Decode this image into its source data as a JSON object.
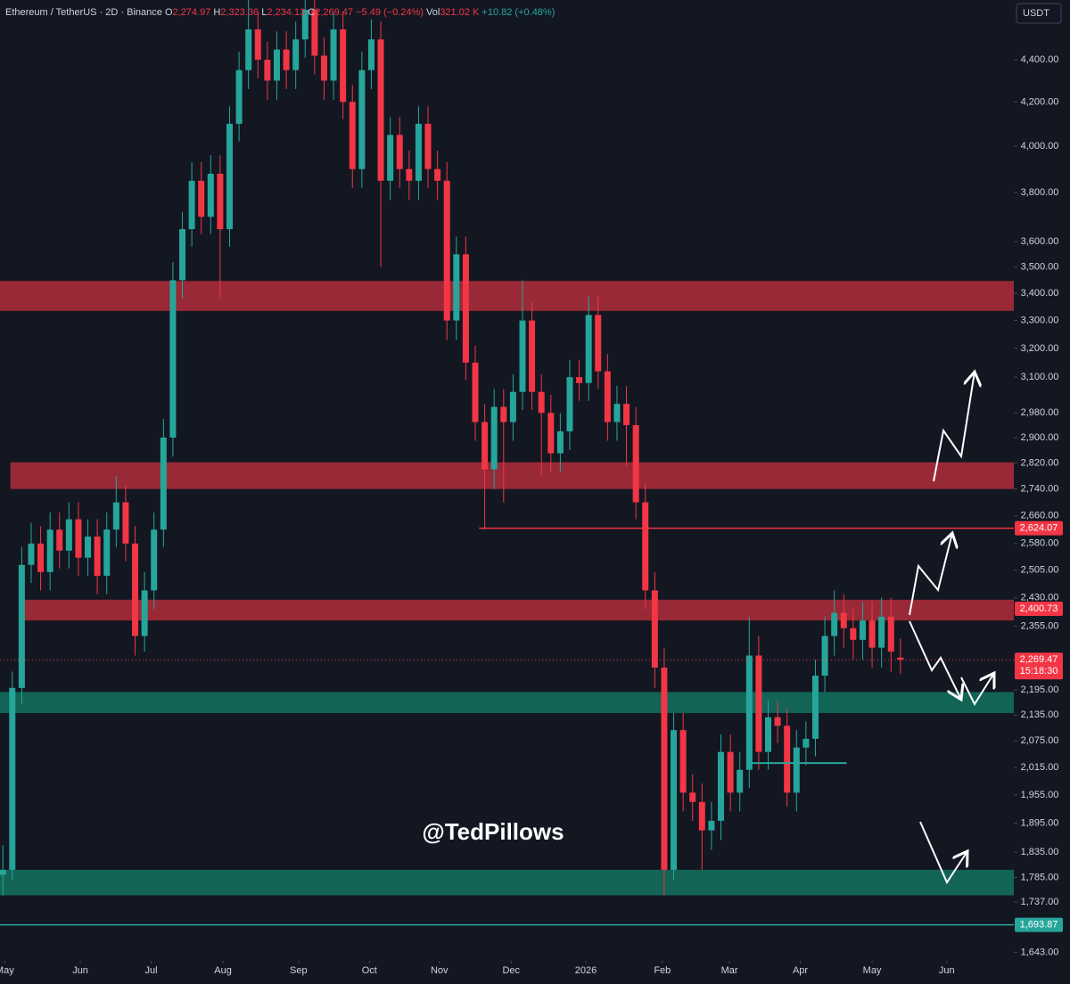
{
  "header": {
    "symbol": "Ethereum / TetherUS · 2D · Binance",
    "o_key": "O",
    "o": "2,274.97",
    "h_key": "H",
    "h": "2,323.36",
    "l_key": "L",
    "l": "2,234.13",
    "c_key": "C",
    "c": "2,269.47",
    "change": "−5.49 (−0.24%)",
    "vol_key": "Vol",
    "vol": "321.02 K",
    "vol_change": "+10.82 (+0.48%)",
    "currency": "USDT",
    "watermark": "@TedPillows"
  },
  "chart_data": {
    "type": "candlestick",
    "log_scale": true,
    "up_color": "#26a69a",
    "down_color": "#f23645",
    "xlim": [
      -0.3,
      107
    ],
    "ylim": [
      1628,
      4700
    ],
    "yticks": [
      {
        "value": 4400,
        "label": "4,400.00"
      },
      {
        "value": 4200,
        "label": "4,200.00"
      },
      {
        "value": 4000,
        "label": "4,000.00"
      },
      {
        "value": 3800,
        "label": "3,800.00"
      },
      {
        "value": 3600,
        "label": "3,600.00"
      },
      {
        "value": 3500,
        "label": "3,500.00"
      },
      {
        "value": 3400,
        "label": "3,400.00"
      },
      {
        "value": 3300,
        "label": "3,300.00"
      },
      {
        "value": 3200,
        "label": "3,200.00"
      },
      {
        "value": 3100,
        "label": "3,100.00"
      },
      {
        "value": 2980,
        "label": "2,980.00"
      },
      {
        "value": 2900,
        "label": "2,900.00"
      },
      {
        "value": 2820,
        "label": "2,820.00"
      },
      {
        "value": 2740,
        "label": "2,740.00"
      },
      {
        "value": 2660,
        "label": "2,660.00"
      },
      {
        "value": 2580,
        "label": "2,580.00"
      },
      {
        "value": 2505,
        "label": "2,505.00"
      },
      {
        "value": 2430,
        "label": "2,430.00"
      },
      {
        "value": 2355,
        "label": "2,355.00"
      },
      {
        "value": 2195,
        "label": "2,195.00"
      },
      {
        "value": 2135,
        "label": "2,135.00"
      },
      {
        "value": 2075,
        "label": "2,075.00"
      },
      {
        "value": 2015,
        "label": "2,015.00"
      },
      {
        "value": 1955,
        "label": "1,955.00"
      },
      {
        "value": 1895,
        "label": "1,895.00"
      },
      {
        "value": 1835,
        "label": "1,835.00"
      },
      {
        "value": 1785,
        "label": "1,785.00"
      },
      {
        "value": 1737,
        "label": "1,737.00"
      },
      {
        "value": 1643,
        "label": "1,643.00"
      }
    ],
    "xticks": [
      {
        "value": 0.2,
        "label": "May"
      },
      {
        "value": 8.2,
        "label": "Jun"
      },
      {
        "value": 15.7,
        "label": "Jul"
      },
      {
        "value": 23.3,
        "label": "Aug"
      },
      {
        "value": 31.3,
        "label": "Sep"
      },
      {
        "value": 38.8,
        "label": "Oct"
      },
      {
        "value": 46.2,
        "label": "Nov"
      },
      {
        "value": 53.8,
        "label": "Dec"
      },
      {
        "value": 61.7,
        "label": "2026"
      },
      {
        "value": 69.8,
        "label": "Feb"
      },
      {
        "value": 76.9,
        "label": "Mar"
      },
      {
        "value": 84.4,
        "label": "Apr"
      },
      {
        "value": 92,
        "label": "May"
      },
      {
        "value": 99.9,
        "label": "Jun"
      }
    ],
    "ohlc": [
      [
        1790,
        1850,
        1750,
        1800
      ],
      [
        1800,
        2240,
        1780,
        2200
      ],
      [
        2200,
        2570,
        2160,
        2520
      ],
      [
        2520,
        2640,
        2470,
        2580
      ],
      [
        2580,
        2630,
        2450,
        2500
      ],
      [
        2500,
        2670,
        2450,
        2620
      ],
      [
        2620,
        2670,
        2510,
        2560
      ],
      [
        2560,
        2700,
        2510,
        2650
      ],
      [
        2650,
        2700,
        2490,
        2540
      ],
      [
        2540,
        2650,
        2490,
        2600
      ],
      [
        2600,
        2650,
        2440,
        2490
      ],
      [
        2490,
        2670,
        2440,
        2620
      ],
      [
        2620,
        2780,
        2570,
        2700
      ],
      [
        2700,
        2750,
        2530,
        2580
      ],
      [
        2580,
        2630,
        2280,
        2330
      ],
      [
        2330,
        2500,
        2290,
        2450
      ],
      [
        2450,
        2670,
        2400,
        2620
      ],
      [
        2620,
        2960,
        2570,
        2900
      ],
      [
        2900,
        3520,
        2840,
        3450
      ],
      [
        3450,
        3720,
        3380,
        3650
      ],
      [
        3650,
        3930,
        3580,
        3850
      ],
      [
        3850,
        3930,
        3630,
        3700
      ],
      [
        3700,
        3960,
        3630,
        3880
      ],
      [
        3880,
        3960,
        3380,
        3650
      ],
      [
        3650,
        4180,
        3580,
        4100
      ],
      [
        4100,
        4440,
        4020,
        4350
      ],
      [
        4350,
        4700,
        4260,
        4550
      ],
      [
        4550,
        4640,
        4310,
        4400
      ],
      [
        4400,
        4490,
        4210,
        4300
      ],
      [
        4300,
        4540,
        4210,
        4450
      ],
      [
        4450,
        4540,
        4260,
        4350
      ],
      [
        4350,
        4590,
        4260,
        4500
      ],
      [
        4500,
        4700,
        4410,
        4650
      ],
      [
        4650,
        4700,
        4330,
        4420
      ],
      [
        4420,
        4510,
        4210,
        4300
      ],
      [
        4300,
        4640,
        4210,
        4550
      ],
      [
        4550,
        4640,
        4120,
        4200
      ],
      [
        4200,
        4280,
        3820,
        3900
      ],
      [
        3900,
        4440,
        3820,
        4350
      ],
      [
        4350,
        4600,
        4260,
        4500
      ],
      [
        4500,
        4590,
        3500,
        3850
      ],
      [
        3850,
        4130,
        3770,
        4050
      ],
      [
        4050,
        4130,
        3820,
        3900
      ],
      [
        3900,
        3980,
        3770,
        3850
      ],
      [
        3850,
        4180,
        3770,
        4100
      ],
      [
        4100,
        4180,
        3820,
        3900
      ],
      [
        3900,
        3980,
        3770,
        3850
      ],
      [
        3850,
        3930,
        3230,
        3300
      ],
      [
        3300,
        3620,
        3230,
        3550
      ],
      [
        3550,
        3620,
        3090,
        3150
      ],
      [
        3150,
        3210,
        2890,
        2950
      ],
      [
        2950,
        3010,
        2620,
        2800
      ],
      [
        2800,
        3060,
        2740,
        3000
      ],
      [
        3000,
        3060,
        2700,
        2950
      ],
      [
        2950,
        3110,
        2890,
        3050
      ],
      [
        3050,
        3450,
        2990,
        3300
      ],
      [
        3300,
        3370,
        2990,
        3050
      ],
      [
        3050,
        3110,
        2780,
        2980
      ],
      [
        2980,
        3040,
        2790,
        2850
      ],
      [
        2850,
        2980,
        2790,
        2920
      ],
      [
        2920,
        3160,
        2860,
        3100
      ],
      [
        3100,
        3160,
        3020,
        3080
      ],
      [
        3080,
        3390,
        3020,
        3320
      ],
      [
        3320,
        3390,
        3060,
        3120
      ],
      [
        3120,
        3180,
        2890,
        2950
      ],
      [
        2950,
        3070,
        2890,
        3010
      ],
      [
        3010,
        3070,
        2810,
        2940
      ],
      [
        2940,
        3000,
        2650,
        2700
      ],
      [
        2700,
        2760,
        2400,
        2450
      ],
      [
        2450,
        2500,
        2200,
        2250
      ],
      [
        2250,
        2300,
        1750,
        1800
      ],
      [
        1800,
        2140,
        1780,
        2100
      ],
      [
        2100,
        2140,
        1920,
        1960
      ],
      [
        1960,
        2000,
        1900,
        1940
      ],
      [
        1940,
        1980,
        1800,
        1880
      ],
      [
        1880,
        1940,
        1840,
        1900
      ],
      [
        1900,
        2090,
        1860,
        2050
      ],
      [
        2050,
        2090,
        1920,
        1960
      ],
      [
        1960,
        2050,
        1920,
        2010
      ],
      [
        2010,
        2380,
        1970,
        2280
      ],
      [
        2280,
        2330,
        2010,
        2050
      ],
      [
        2050,
        2170,
        2010,
        2130
      ],
      [
        2130,
        2170,
        2070,
        2110
      ],
      [
        2110,
        2150,
        1930,
        1960
      ],
      [
        1960,
        2100,
        1920,
        2060
      ],
      [
        2060,
        2120,
        2020,
        2080
      ],
      [
        2080,
        2270,
        2040,
        2230
      ],
      [
        2230,
        2380,
        2190,
        2330
      ],
      [
        2330,
        2450,
        2280,
        2390
      ],
      [
        2390,
        2440,
        2300,
        2350
      ],
      [
        2350,
        2400,
        2270,
        2320
      ],
      [
        2320,
        2420,
        2270,
        2370
      ],
      [
        2370,
        2420,
        2250,
        2300
      ],
      [
        2300,
        2430,
        2250,
        2380
      ],
      [
        2380,
        2430,
        2240,
        2290
      ],
      [
        2274.97,
        2323.36,
        2234.13,
        2269.47
      ]
    ],
    "zones": [
      {
        "from": 3335,
        "to": 3447,
        "x0": -0.3,
        "color": "#b22d3a"
      },
      {
        "from": 2740,
        "to": 2822,
        "x0": 0.8,
        "color": "#b22d3a"
      },
      {
        "from": 2370,
        "to": 2425,
        "x0": 2.3,
        "color": "#b22d3a"
      },
      {
        "from": 2140,
        "to": 2190,
        "x0": -0.3,
        "color": "#12725f"
      },
      {
        "from": 1750,
        "to": 1800,
        "x0": -0.3,
        "color": "#12725f"
      }
    ],
    "levels": [
      {
        "value": 2624.07,
        "label": "2,624.07",
        "color": "#f23645",
        "style": "solid",
        "x0": 50.4
      },
      {
        "value": 2400.73,
        "label": "2,400.73",
        "color": "#f23645",
        "style": "none",
        "x0": -0.3
      },
      {
        "value": 2269.47,
        "label": "2,269.47",
        "sublabel": "15:18:30",
        "color": "#f23645",
        "style": "dotted",
        "x0": -0.3
      },
      {
        "value": 1693.87,
        "label": "1,693.87",
        "color": "#26a69a",
        "style": "solid",
        "x0": -0.3
      }
    ],
    "segments": [
      {
        "value": 2025,
        "x": [
          79,
          89.3
        ],
        "color": "#26a69a"
      }
    ]
  }
}
